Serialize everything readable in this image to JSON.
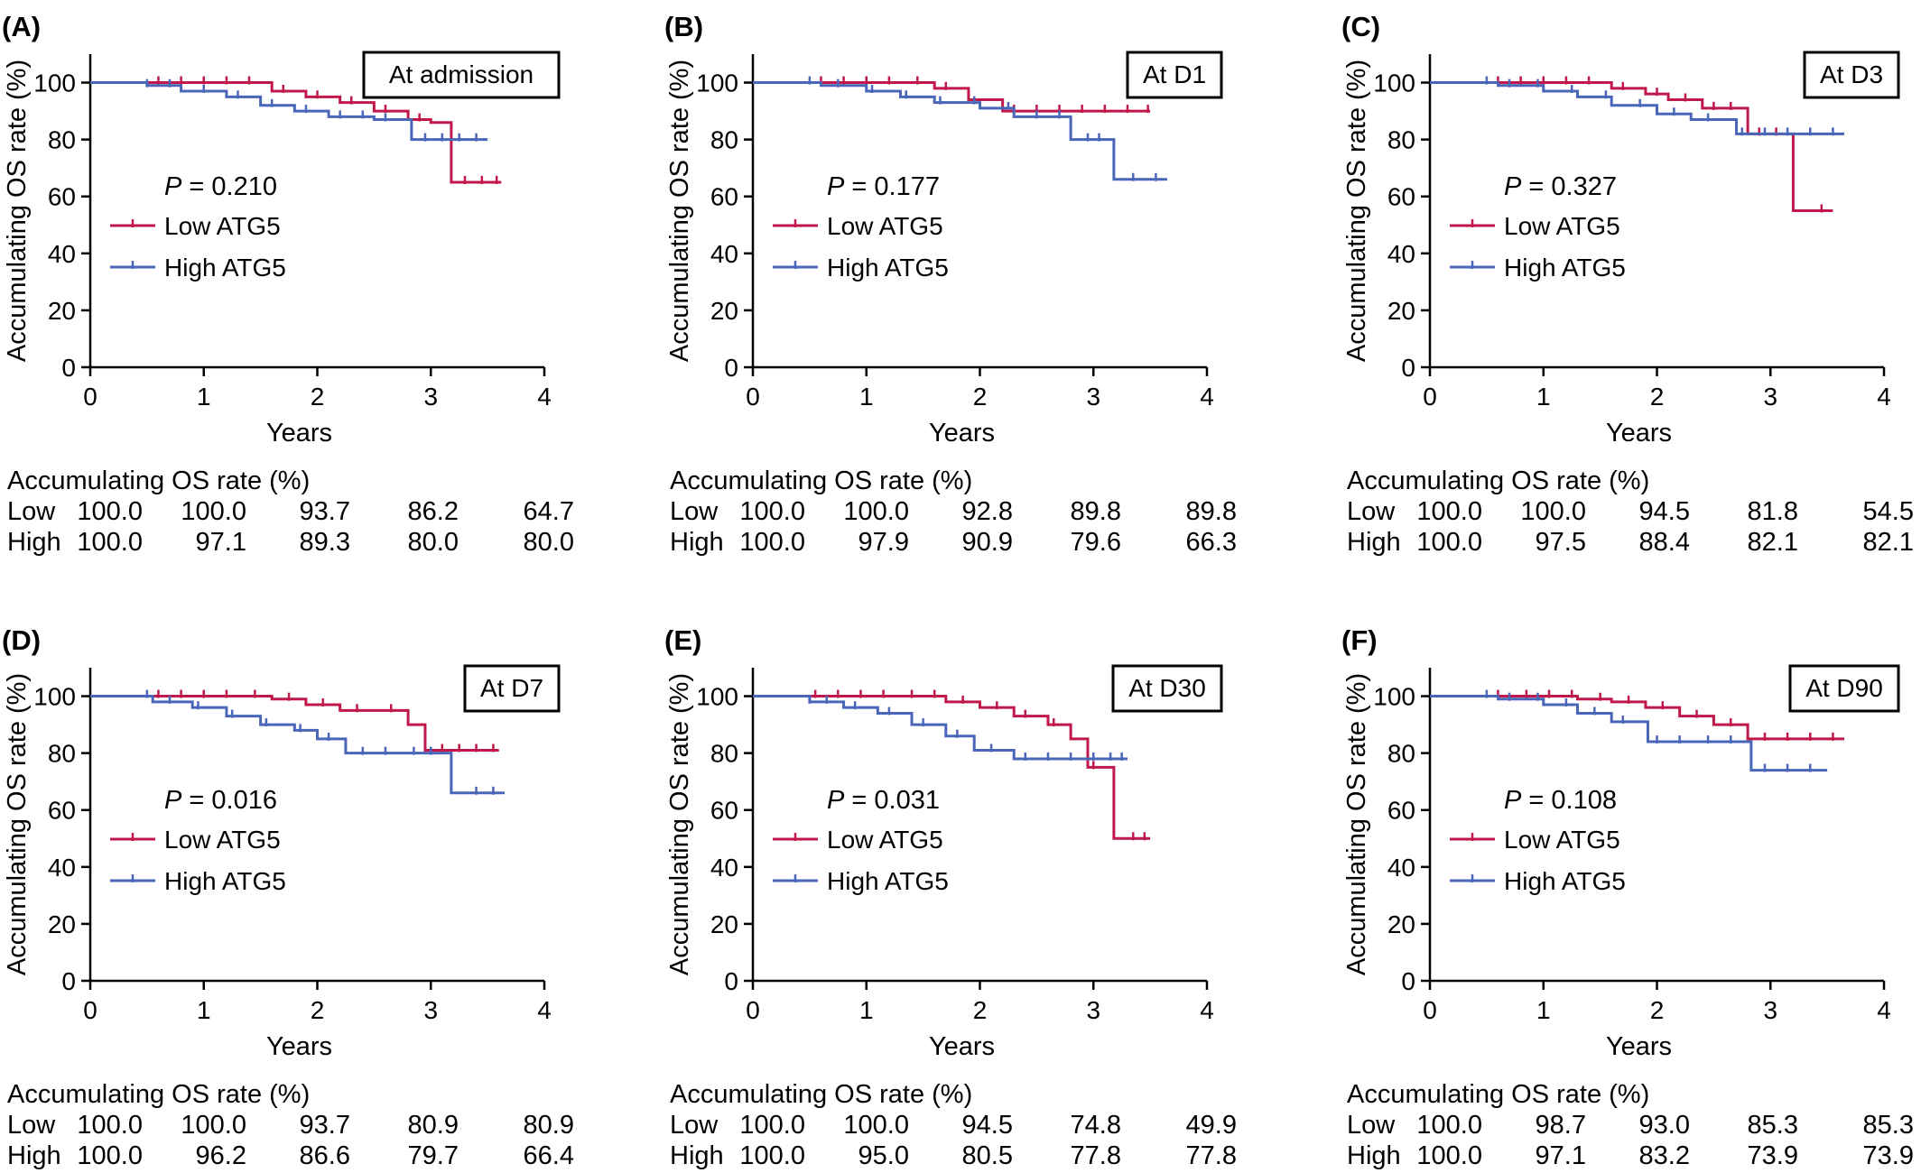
{
  "chart_data": [
    {
      "type": "line",
      "panel": "(A)",
      "title": "At admission",
      "xlabel": "Years",
      "ylabel": "Accumulating OS rate (%)",
      "xlim": [
        0,
        4
      ],
      "ylim": [
        0,
        110
      ],
      "xticks": [
        0,
        1,
        2,
        3,
        4
      ],
      "yticks": [
        0,
        20,
        40,
        60,
        80,
        100
      ],
      "p_value": "0.210",
      "legend": "middle-left",
      "series": [
        {
          "name": "Low ATG5",
          "color": "#c0184a",
          "x": [
            0,
            0.95,
            1.6,
            1.9,
            2.2,
            2.5,
            2.8,
            3.0,
            3.18,
            3.62
          ],
          "y": [
            100,
            100,
            97,
            95,
            93,
            90,
            87,
            86,
            65,
            65
          ],
          "censor": [
            0.6,
            0.8,
            1.0,
            1.2,
            1.4,
            1.7,
            2.0,
            2.3,
            2.6,
            2.9,
            3.3,
            3.45,
            3.58
          ]
        },
        {
          "name": "High ATG5",
          "color": "#4a66b8",
          "x": [
            0,
            0.5,
            0.8,
            1.2,
            1.5,
            1.8,
            2.1,
            2.5,
            2.83,
            3.5
          ],
          "y": [
            100,
            99,
            97,
            95,
            92,
            90,
            88,
            87,
            80,
            80
          ],
          "censor": [
            0.5,
            0.7,
            1.0,
            1.3,
            1.6,
            1.9,
            2.2,
            2.4,
            2.6,
            2.95,
            3.1,
            3.25,
            3.4
          ]
        }
      ],
      "table": {
        "title": "Accumulating OS rate (%)",
        "rows": [
          {
            "label": "Low",
            "values": [
              "100.0",
              "100.0",
              "93.7",
              "86.2",
              "64.7"
            ]
          },
          {
            "label": "High",
            "values": [
              "100.0",
              "97.1",
              "89.3",
              "80.0",
              "80.0"
            ]
          }
        ]
      }
    },
    {
      "type": "line",
      "panel": "(B)",
      "title": "At D1",
      "xlabel": "Years",
      "ylabel": "Accumulating OS rate (%)",
      "xlim": [
        0,
        4
      ],
      "ylim": [
        0,
        110
      ],
      "xticks": [
        0,
        1,
        2,
        3,
        4
      ],
      "yticks": [
        0,
        20,
        40,
        60,
        80,
        100
      ],
      "p_value": "0.177",
      "legend": "middle-left",
      "series": [
        {
          "name": "Low ATG5",
          "color": "#c0184a",
          "x": [
            0,
            1.0,
            1.6,
            1.9,
            2.2,
            3.5
          ],
          "y": [
            100,
            100,
            98,
            94,
            90,
            90
          ],
          "censor": [
            0.6,
            0.8,
            1.0,
            1.2,
            1.45,
            1.7,
            2.3,
            2.5,
            2.7,
            2.9,
            3.1,
            3.3,
            3.48
          ]
        },
        {
          "name": "High ATG5",
          "color": "#4a66b8",
          "x": [
            0,
            0.6,
            1.0,
            1.3,
            1.6,
            2.0,
            2.3,
            2.8,
            3.18,
            3.65
          ],
          "y": [
            100,
            99,
            97,
            95,
            93,
            91,
            88,
            80,
            66,
            66
          ],
          "censor": [
            0.5,
            0.75,
            1.05,
            1.35,
            1.65,
            1.95,
            2.25,
            2.5,
            2.7,
            2.95,
            3.05,
            3.35,
            3.55
          ]
        }
      ],
      "table": {
        "title": "Accumulating OS rate (%)",
        "rows": [
          {
            "label": "Low",
            "values": [
              "100.0",
              "100.0",
              "92.8",
              "89.8",
              "89.8"
            ]
          },
          {
            "label": "High",
            "values": [
              "100.0",
              "97.9",
              "90.9",
              "79.6",
              "66.3"
            ]
          }
        ]
      }
    },
    {
      "type": "line",
      "panel": "(C)",
      "title": "At D3",
      "xlabel": "Years",
      "ylabel": "Accumulating OS rate (%)",
      "xlim": [
        0,
        4
      ],
      "ylim": [
        0,
        110
      ],
      "xticks": [
        0,
        1,
        2,
        3,
        4
      ],
      "yticks": [
        0,
        20,
        40,
        60,
        80,
        100
      ],
      "p_value": "0.327",
      "legend": "middle-left",
      "series": [
        {
          "name": "Low ATG5",
          "color": "#c0184a",
          "x": [
            0,
            1.6,
            1.9,
            2.1,
            2.4,
            2.8,
            3.2,
            3.55
          ],
          "y": [
            100,
            98,
            96,
            94,
            91,
            82,
            55,
            55
          ],
          "censor": [
            0.6,
            0.8,
            1.0,
            1.2,
            1.4,
            1.7,
            2.0,
            2.25,
            2.5,
            2.65,
            2.9,
            3.05,
            3.45
          ]
        },
        {
          "name": "High ATG5",
          "color": "#4a66b8",
          "x": [
            0,
            0.6,
            1.0,
            1.3,
            1.6,
            2.0,
            2.3,
            2.7,
            3.65
          ],
          "y": [
            100,
            99,
            97,
            95,
            92,
            89,
            87,
            82,
            82
          ],
          "censor": [
            0.5,
            0.7,
            0.95,
            1.25,
            1.55,
            1.85,
            2.15,
            2.45,
            2.75,
            2.95,
            3.15,
            3.35,
            3.55
          ]
        }
      ],
      "table": {
        "title": "Accumulating OS rate (%)",
        "rows": [
          {
            "label": "Low",
            "values": [
              "100.0",
              "100.0",
              "94.5",
              "81.8",
              "54.5"
            ]
          },
          {
            "label": "High",
            "values": [
              "100.0",
              "97.5",
              "88.4",
              "82.1",
              "82.1"
            ]
          }
        ]
      }
    },
    {
      "type": "line",
      "panel": "(D)",
      "title": "At D7",
      "xlabel": "Years",
      "ylabel": "Accumulating OS rate (%)",
      "xlim": [
        0,
        4
      ],
      "ylim": [
        0,
        110
      ],
      "xticks": [
        0,
        1,
        2,
        3,
        4
      ],
      "yticks": [
        0,
        20,
        40,
        60,
        80,
        100
      ],
      "p_value": "0.016",
      "legend": "middle-left",
      "series": [
        {
          "name": "Low ATG5",
          "color": "#c0184a",
          "x": [
            0,
            1.3,
            1.6,
            1.9,
            2.2,
            2.5,
            2.8,
            2.95,
            3.6
          ],
          "y": [
            100,
            100,
            99,
            97,
            95,
            95,
            90,
            81,
            81
          ],
          "censor": [
            0.6,
            0.8,
            1.0,
            1.2,
            1.45,
            1.75,
            2.05,
            2.35,
            2.65,
            3.1,
            3.25,
            3.4,
            3.55
          ]
        },
        {
          "name": "High ATG5",
          "color": "#4a66b8",
          "x": [
            0,
            0.55,
            0.9,
            1.2,
            1.5,
            1.8,
            2.0,
            2.25,
            3.18,
            3.65
          ],
          "y": [
            100,
            98,
            96,
            93,
            90,
            88,
            85,
            80,
            66,
            66
          ],
          "censor": [
            0.5,
            0.7,
            0.95,
            1.25,
            1.55,
            1.85,
            2.1,
            2.4,
            2.6,
            2.85,
            3.0,
            3.4,
            3.55
          ]
        }
      ],
      "table": {
        "title": "Accumulating OS rate (%)",
        "rows": [
          {
            "label": "Low",
            "values": [
              "100.0",
              "100.0",
              "93.7",
              "80.9",
              "80.9"
            ]
          },
          {
            "label": "High",
            "values": [
              "100.0",
              "96.2",
              "86.6",
              "79.7",
              "66.4"
            ]
          }
        ]
      }
    },
    {
      "type": "line",
      "panel": "(E)",
      "title": "At D30",
      "xlabel": "Years",
      "ylabel": "Accumulating OS rate (%)",
      "xlim": [
        0,
        4
      ],
      "ylim": [
        0,
        110
      ],
      "xticks": [
        0,
        1,
        2,
        3,
        4
      ],
      "yticks": [
        0,
        20,
        40,
        60,
        80,
        100
      ],
      "p_value": "0.031",
      "legend": "middle-left",
      "series": [
        {
          "name": "Low ATG5",
          "color": "#c0184a",
          "x": [
            0,
            1.3,
            1.7,
            2.0,
            2.3,
            2.6,
            2.8,
            2.95,
            3.18,
            3.5
          ],
          "y": [
            100,
            100,
            98,
            96,
            93,
            90,
            85,
            75,
            50,
            50
          ],
          "censor": [
            0.55,
            0.75,
            0.95,
            1.15,
            1.4,
            1.6,
            1.85,
            2.15,
            2.4,
            2.65,
            3.0,
            3.35,
            3.45
          ]
        },
        {
          "name": "High ATG5",
          "color": "#4a66b8",
          "x": [
            0,
            0.5,
            0.8,
            1.1,
            1.4,
            1.7,
            1.95,
            2.3,
            3.3
          ],
          "y": [
            100,
            98,
            96,
            94,
            90,
            86,
            81,
            78,
            78
          ],
          "censor": [
            0.5,
            0.65,
            0.9,
            1.2,
            1.5,
            1.8,
            2.1,
            2.4,
            2.6,
            2.8,
            3.0,
            3.15,
            3.25
          ]
        }
      ],
      "table": {
        "title": "Accumulating OS rate (%)",
        "rows": [
          {
            "label": "Low",
            "values": [
              "100.0",
              "100.0",
              "94.5",
              "74.8",
              "49.9"
            ]
          },
          {
            "label": "High",
            "values": [
              "100.0",
              "95.0",
              "80.5",
              "77.8",
              "77.8"
            ]
          }
        ]
      }
    },
    {
      "type": "line",
      "panel": "(F)",
      "title": "At D90",
      "xlabel": "Years",
      "ylabel": "Accumulating OS rate (%)",
      "xlim": [
        0,
        4
      ],
      "ylim": [
        0,
        110
      ],
      "xticks": [
        0,
        1,
        2,
        3,
        4
      ],
      "yticks": [
        0,
        20,
        40,
        60,
        80,
        100
      ],
      "p_value": "0.108",
      "legend": "middle-left",
      "series": [
        {
          "name": "Low ATG5",
          "color": "#c0184a",
          "x": [
            0,
            1.3,
            1.6,
            1.9,
            2.2,
            2.5,
            2.8,
            3.65
          ],
          "y": [
            100,
            99,
            98,
            96,
            93,
            90,
            85,
            85
          ],
          "censor": [
            0.6,
            0.85,
            1.05,
            1.25,
            1.5,
            1.75,
            2.05,
            2.35,
            2.65,
            2.95,
            3.15,
            3.35,
            3.55
          ]
        },
        {
          "name": "High ATG5",
          "color": "#4a66b8",
          "x": [
            0,
            0.6,
            1.0,
            1.3,
            1.6,
            1.92,
            2.83,
            3.5
          ],
          "y": [
            100,
            99,
            97,
            94,
            91,
            84,
            74,
            74
          ],
          "censor": [
            0.5,
            0.7,
            0.95,
            1.2,
            1.45,
            1.7,
            2.0,
            2.2,
            2.45,
            2.65,
            2.95,
            3.15,
            3.35
          ]
        }
      ],
      "table": {
        "title": "Accumulating OS rate (%)",
        "rows": [
          {
            "label": "Low",
            "values": [
              "100.0",
              "98.7",
              "93.0",
              "85.3",
              "85.3"
            ]
          },
          {
            "label": "High",
            "values": [
              "100.0",
              "97.1",
              "83.2",
              "73.9",
              "73.9"
            ]
          }
        ]
      }
    }
  ]
}
